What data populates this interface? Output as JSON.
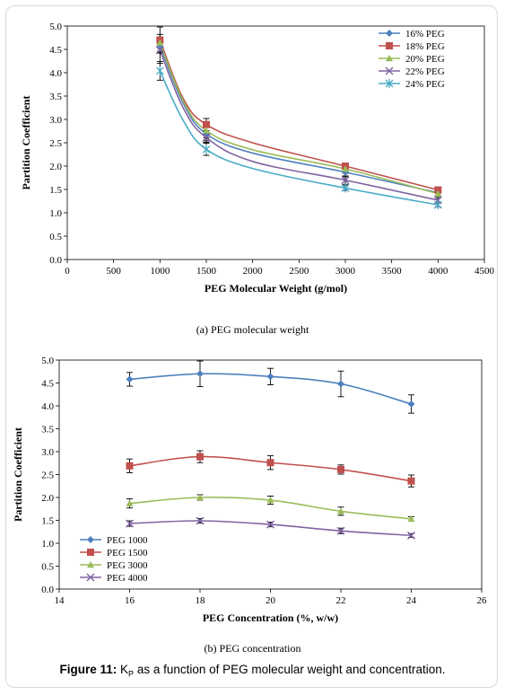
{
  "chart_data": [
    {
      "type": "line",
      "caption": "(a) PEG molecular weight",
      "xlabel": "PEG Molecular Weight  (g/mol)",
      "ylabel": "Partition Coefficient",
      "xlim": [
        0,
        4500
      ],
      "ylim": [
        0.0,
        5.0
      ],
      "xticks": [
        "0",
        "500",
        "1000",
        "1500",
        "2000",
        "2500",
        "3000",
        "3500",
        "4000",
        "4500"
      ],
      "yticks": [
        "0.0",
        "0.5",
        "1.0",
        "1.5",
        "2.0",
        "2.5",
        "3.0",
        "3.5",
        "4.0",
        "4.5",
        "5.0"
      ],
      "grid": false,
      "legend_position": "top-right",
      "x": [
        1000,
        1500,
        3000,
        4000
      ],
      "series": [
        {
          "name": "16% PEG",
          "marker": "diamond",
          "color": "#4f81bd",
          "values": [
            4.58,
            2.69,
            1.87,
            1.43
          ],
          "errors": [
            0.15,
            0.15,
            0.1,
            0.06
          ]
        },
        {
          "name": "18% PEG",
          "marker": "square",
          "color": "#c0504d",
          "values": [
            4.7,
            2.89,
            2.0,
            1.49
          ],
          "errors": [
            0.28,
            0.13,
            0.06,
            0.05
          ]
        },
        {
          "name": "20% PEG",
          "marker": "triangle",
          "color": "#9bbb59",
          "values": [
            4.64,
            2.76,
            1.94,
            1.41
          ],
          "errors": [
            0.18,
            0.15,
            0.09,
            0.05
          ]
        },
        {
          "name": "22% PEG",
          "marker": "x",
          "color": "#8064a2",
          "values": [
            4.48,
            2.61,
            1.7,
            1.27
          ],
          "errors": [
            0.28,
            0.1,
            0.09,
            0.06
          ]
        },
        {
          "name": "24% PEG",
          "marker": "star",
          "color": "#4bacc6",
          "values": [
            4.04,
            2.36,
            1.53,
            1.17
          ],
          "errors": [
            0.2,
            0.13,
            0.05,
            0.04
          ]
        }
      ],
      "curve_samples": {
        "x": [
          1000,
          1250,
          1500,
          2000,
          3000,
          4000
        ],
        "series": [
          [
            4.58,
            3.35,
            2.69,
            2.28,
            1.87,
            1.43
          ],
          [
            4.7,
            3.45,
            2.89,
            2.5,
            2.0,
            1.49
          ],
          [
            4.64,
            3.4,
            2.76,
            2.35,
            1.94,
            1.41
          ],
          [
            4.48,
            3.25,
            2.61,
            2.1,
            1.7,
            1.27
          ],
          [
            4.04,
            2.98,
            2.36,
            1.95,
            1.53,
            1.17
          ]
        ]
      }
    },
    {
      "type": "line",
      "caption": "(b) PEG concentration",
      "xlabel": "PEG Concentration (%, w/w)",
      "ylabel": "Partition Coefficient",
      "xlim": [
        14,
        26
      ],
      "ylim": [
        0.0,
        5.0
      ],
      "xticks": [
        "14",
        "16",
        "18",
        "20",
        "22",
        "24",
        "26"
      ],
      "yticks": [
        "0.0",
        "0.5",
        "1.0",
        "1.5",
        "2.0",
        "2.5",
        "3.0",
        "3.5",
        "4.0",
        "4.5",
        "5.0"
      ],
      "grid": false,
      "legend_position": "bottom-left",
      "x": [
        16,
        18,
        20,
        22,
        24
      ],
      "series": [
        {
          "name": "PEG 1000",
          "marker": "diamond",
          "color": "#4f81bd",
          "values": [
            4.58,
            4.7,
            4.64,
            4.48,
            4.04
          ],
          "errors": [
            0.15,
            0.28,
            0.18,
            0.28,
            0.2
          ]
        },
        {
          "name": "PEG 1500",
          "marker": "square",
          "color": "#c0504d",
          "values": [
            2.69,
            2.89,
            2.76,
            2.61,
            2.36
          ],
          "errors": [
            0.15,
            0.13,
            0.15,
            0.1,
            0.13
          ]
        },
        {
          "name": "PEG 3000",
          "marker": "triangle",
          "color": "#9bbb59",
          "values": [
            1.87,
            2.0,
            1.94,
            1.7,
            1.53
          ],
          "errors": [
            0.1,
            0.06,
            0.09,
            0.09,
            0.05
          ]
        },
        {
          "name": "PEG 4000",
          "marker": "x",
          "color": "#8064a2",
          "values": [
            1.43,
            1.49,
            1.41,
            1.27,
            1.17
          ],
          "errors": [
            0.06,
            0.05,
            0.05,
            0.06,
            0.04
          ]
        }
      ]
    }
  ],
  "figure_caption": {
    "label": "Figure 11:",
    "k": "K",
    "sub": "P",
    "text": " as a function of PEG molecular weight and concentration."
  }
}
